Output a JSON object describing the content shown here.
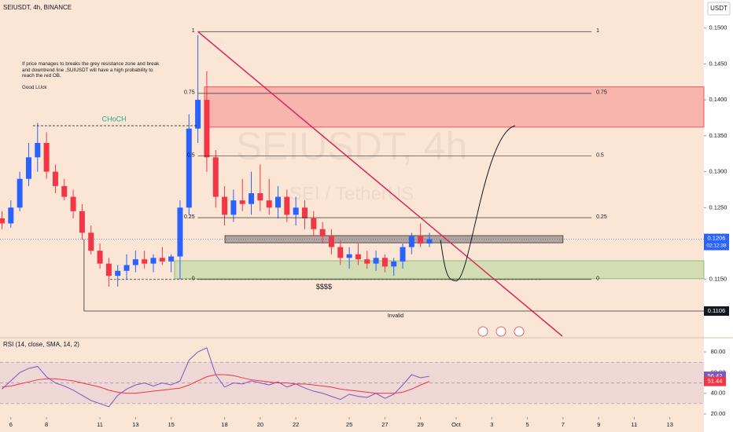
{
  "header": {
    "title": "SEIUSDT, 4h, BINANCE",
    "currency": "USDT"
  },
  "watermark": {
    "symbol": "SEIUSDT, 4h",
    "pair": "SEI / TetherUS"
  },
  "annotation": {
    "text": "If price manages to breaks the grey resistance zone and break and downtrend line ,SUIUSDT will have a high probability to reach the red OB.",
    "sign": "Good LUck"
  },
  "chart_data": [
    {
      "type": "candlestick",
      "x": [
        5.5,
        6,
        6.5,
        7,
        7.5,
        8,
        8.5,
        9,
        9.5,
        10,
        10.5,
        11,
        11.5,
        12,
        12.5,
        13,
        13.5,
        14,
        14.5,
        15,
        15.5,
        16,
        16.5,
        17,
        17.5,
        18,
        18.5,
        19,
        19.5,
        20,
        20.5,
        21,
        21.5,
        22,
        22.5,
        23,
        23.5,
        24,
        24.5,
        25,
        25.5,
        26,
        26.5,
        27,
        27.5,
        28,
        28.5,
        29,
        29.5
      ],
      "open": [
        0.1235,
        0.1228,
        0.125,
        0.129,
        0.132,
        0.134,
        0.13,
        0.128,
        0.1265,
        0.1245,
        0.1215,
        0.119,
        0.1172,
        0.1155,
        0.1162,
        0.117,
        0.1178,
        0.1172,
        0.118,
        0.1175,
        0.1182,
        0.125,
        0.136,
        0.14,
        0.132,
        0.1265,
        0.124,
        0.126,
        0.1255,
        0.127,
        0.126,
        0.125,
        0.1265,
        0.124,
        0.125,
        0.1235,
        0.122,
        0.121,
        0.1195,
        0.118,
        0.1185,
        0.1178,
        0.1172,
        0.118,
        0.1168,
        0.1175,
        0.1195,
        0.121,
        0.12
      ],
      "high": [
        0.1245,
        0.126,
        0.13,
        0.134,
        0.1368,
        0.1355,
        0.131,
        0.129,
        0.1275,
        0.1255,
        0.1225,
        0.12,
        0.118,
        0.117,
        0.1185,
        0.119,
        0.119,
        0.1185,
        0.1195,
        0.1185,
        0.126,
        0.138,
        0.149,
        0.144,
        0.133,
        0.128,
        0.1275,
        0.129,
        0.13,
        0.131,
        0.129,
        0.128,
        0.1275,
        0.1265,
        0.126,
        0.1245,
        0.123,
        0.122,
        0.1205,
        0.1195,
        0.12,
        0.119,
        0.119,
        0.1185,
        0.118,
        0.12,
        0.1215,
        0.1228,
        0.1215
      ],
      "low": [
        0.122,
        0.1222,
        0.1245,
        0.128,
        0.13,
        0.129,
        0.127,
        0.126,
        0.1235,
        0.1205,
        0.1185,
        0.1165,
        0.114,
        0.114,
        0.115,
        0.116,
        0.1165,
        0.116,
        0.117,
        0.116,
        0.115,
        0.124,
        0.134,
        0.13,
        0.125,
        0.1225,
        0.123,
        0.1245,
        0.124,
        0.1245,
        0.124,
        0.1235,
        0.123,
        0.1225,
        0.122,
        0.121,
        0.12,
        0.1185,
        0.117,
        0.1165,
        0.117,
        0.1165,
        0.1162,
        0.116,
        0.1155,
        0.1165,
        0.1185,
        0.1195,
        0.1195
      ],
      "close": [
        0.1228,
        0.125,
        0.129,
        0.132,
        0.134,
        0.13,
        0.128,
        0.1265,
        0.1245,
        0.1215,
        0.119,
        0.1172,
        0.1155,
        0.1162,
        0.117,
        0.1178,
        0.1172,
        0.118,
        0.1175,
        0.1182,
        0.125,
        0.136,
        0.14,
        0.132,
        0.1265,
        0.124,
        0.126,
        0.1255,
        0.127,
        0.126,
        0.125,
        0.1265,
        0.124,
        0.125,
        0.1235,
        0.122,
        0.121,
        0.1195,
        0.118,
        0.1185,
        0.1178,
        0.1172,
        0.118,
        0.1168,
        0.1175,
        0.1195,
        0.121,
        0.12,
        0.1206
      ],
      "up_color": "#2962ff",
      "down_color": "#f23645",
      "xlim": [
        5.39,
        44.91
      ],
      "ylim": [
        0.1071,
        0.1539
      ],
      "xticks": [
        6,
        8,
        11,
        13,
        15,
        18,
        20,
        22,
        25,
        27,
        29,
        {
          "value": 31,
          "label": "Oct"
        },
        {
          "value": 33,
          "label": "3"
        },
        {
          "value": 35,
          "label": "5"
        },
        {
          "value": 37,
          "label": "7"
        },
        {
          "value": 39,
          "label": "9"
        },
        {
          "value": 41,
          "label": "11"
        },
        {
          "value": 43,
          "label": "13"
        }
      ],
      "yticks": [
        {
          "value": 0.115,
          "label": "0.1150"
        },
        {
          "value": 0.12,
          "label": "0.1200"
        },
        {
          "value": 0.125,
          "label": "0.1250"
        },
        {
          "value": 0.13,
          "label": "0.1300"
        },
        {
          "value": 0.135,
          "label": "0.1350"
        },
        {
          "value": 0.14,
          "label": "0.1400"
        },
        {
          "value": 0.145,
          "label": "0.1450"
        },
        {
          "value": 0.15,
          "label": "0.1500"
        }
      ],
      "countdown": "02:12:38",
      "fib": {
        "start": 16.5,
        "end": 38.6,
        "levels": [
          {
            "label": "1",
            "price": 0.1495
          },
          {
            "label": "0.75",
            "price": 0.1409
          },
          {
            "label": "0.5",
            "price": 0.1322
          },
          {
            "label": "0.25",
            "price": 0.1236
          },
          {
            "label": "0",
            "price": 0.115
          }
        ]
      },
      "zones": [
        {
          "color": "rgba(242,54,69,0.28)",
          "stroke": "#f23645",
          "start": 16.87,
          "end": 44.91,
          "low": 0.1362,
          "high": 0.1418
        },
        {
          "color": "rgba(120,110,110,0.55)",
          "stroke": "#333",
          "start": 18.02,
          "end": 37.0,
          "low": 0.1201,
          "high": 0.1211
        },
        {
          "color": "rgba(160,210,140,0.45)",
          "stroke": "#7cb66a",
          "start": 15.19,
          "end": 44.91,
          "low": 0.1151,
          "high": 0.1176
        }
      ],
      "trendline": {
        "x": [
          16.5,
          36.96
        ],
        "y": [
          0.1495,
          0.1071
        ],
        "color": "#e0245e"
      },
      "choch": {
        "label": "CHoCH",
        "price": 0.1364,
        "start": 7.24,
        "end": 16.5,
        "label_x": 11.8
      },
      "liquidity": {
        "label": "$$$$",
        "price": 0.115,
        "start": 11.57,
        "end": 35.86,
        "label_x": 23.58
      },
      "invalid": {
        "label": "Invalid",
        "price": 0.1106,
        "start": 10.11,
        "top": 0.1206,
        "label_x": 27.6
      },
      "projection": {
        "x": [
          30.12,
          31.0,
          34.31
        ],
        "y": [
          0.1205,
          0.1148,
          0.1364
        ]
      }
    },
    {
      "type": "line",
      "title": "RSI (14, close, SMA, 14, 2)",
      "series": [
        {
          "name": "RSI",
          "color": "#7e57c2",
          "values": [
            44,
            52,
            60,
            64,
            66,
            56,
            50,
            47,
            43,
            38,
            33,
            30,
            27,
            38,
            44,
            48,
            50,
            47,
            50,
            48,
            52,
            72,
            80,
            84,
            58,
            46,
            50,
            49,
            52,
            50,
            48,
            51,
            46,
            49,
            45,
            42,
            40,
            37,
            34,
            39,
            37,
            36,
            40,
            35,
            39,
            48,
            58,
            55,
            56.42
          ]
        },
        {
          "name": "SMA",
          "color": "#f23645",
          "values": [
            46,
            47,
            49,
            51,
            53,
            54,
            54,
            53,
            52,
            50,
            48,
            46,
            43,
            41,
            40,
            40,
            41,
            42,
            43,
            44,
            45,
            48,
            52,
            56,
            58,
            58,
            57,
            55,
            53,
            52,
            51,
            50,
            50,
            49,
            49,
            48,
            47,
            46,
            44,
            43,
            42,
            41,
            40,
            40,
            40,
            41,
            44,
            48,
            51.44
          ]
        }
      ],
      "ylim": [
        17.7,
        92.2
      ],
      "yticks": [
        {
          "value": 20,
          "label": "20.00"
        },
        {
          "value": 40,
          "label": "40.00"
        },
        {
          "value": 60,
          "label": "60.00"
        },
        {
          "value": 80,
          "label": "80.00"
        }
      ],
      "levels": [
        30,
        50,
        70
      ]
    }
  ]
}
